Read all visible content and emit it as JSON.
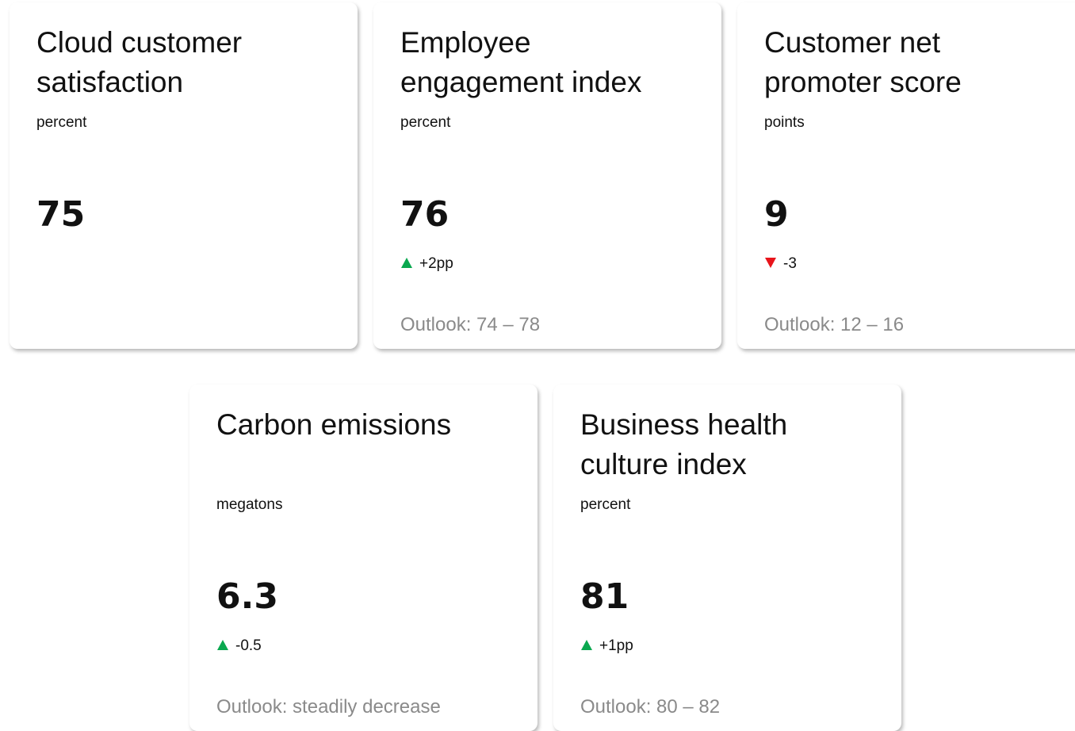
{
  "cards": [
    {
      "title": "Cloud customer satisfaction",
      "unit": "percent",
      "value": "75"
    },
    {
      "title": "Employee engagement index",
      "unit": "percent",
      "value": "76",
      "change": "+2pp",
      "trend": "up",
      "outlook": "Outlook: 74 – 78"
    },
    {
      "title": "Customer net promoter score",
      "unit": "points",
      "value": "9",
      "change": "-3",
      "trend": "down",
      "outlook": "Outlook: 12 – 16"
    },
    {
      "title": "Carbon emissions",
      "unit": "megatons",
      "value": "6.3",
      "change": "-0.5",
      "trend": "up",
      "outlook": "Outlook: steadily decrease"
    },
    {
      "title": "Business health culture index",
      "unit": "percent",
      "value": "81",
      "change": "+1pp",
      "trend": "up",
      "outlook": "Outlook: 80 – 82"
    }
  ]
}
